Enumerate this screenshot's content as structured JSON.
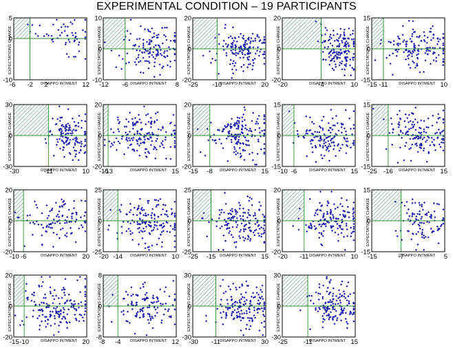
{
  "chart_data": {
    "type": "scatter",
    "title": "EXPERIMENTAL CONDITION – 19 PARTICIPANTS",
    "marker_color": "#1a1aa8",
    "reference_line_color": "#2e8b2e",
    "frame_color": "#000000",
    "hatch_color": "#2e7d5e",
    "panels": [
      {
        "xlabel": "DISAPPO INTMENT",
        "ylabel": "EXPECTATIONS CHANGE",
        "x_ticks": [
          "-6",
          "-2",
          "2",
          "12"
        ],
        "y_ticks": [
          "5",
          "0",
          "-10"
        ],
        "x_range": [
          -6,
          12
        ],
        "y_range": [
          -10,
          5
        ],
        "x_ref": -2,
        "y_ref": 0,
        "seed": 1,
        "n": 55
      },
      {
        "xlabel": "DISAPPO INTMENT",
        "ylabel": "EXPECTATIONS CHANGE",
        "x_ticks": [
          "-12",
          "-6",
          "8"
        ],
        "y_ticks": [
          "10",
          "0",
          "-10"
        ],
        "x_range": [
          -12,
          8
        ],
        "y_range": [
          -10,
          10
        ],
        "x_ref": -6,
        "y_ref": 0,
        "seed": 2,
        "n": 140
      },
      {
        "xlabel": "DISAPPO INTMENT",
        "ylabel": "EXPECTATIONS CHANGE",
        "x_ticks": [
          "-25",
          "-10",
          "20"
        ],
        "y_ticks": [
          "20",
          "0",
          "-20"
        ],
        "x_range": [
          -25,
          20
        ],
        "y_range": [
          -20,
          20
        ],
        "x_ref": -10,
        "y_ref": 0,
        "seed": 3,
        "n": 160
      },
      {
        "xlabel": "DISAPPO INTMENT",
        "ylabel": "EXPECTATIONS CHANGE",
        "x_ticks": [
          "-20",
          "-4",
          "10"
        ],
        "y_ticks": [
          "20",
          "0",
          "-20"
        ],
        "x_range": [
          -20,
          10
        ],
        "y_range": [
          -20,
          20
        ],
        "x_ref": -4,
        "y_ref": 0,
        "seed": 4,
        "n": 150
      },
      {
        "xlabel": "DISAPPO INTMENT",
        "ylabel": "EXPECTATIONS CHANGE",
        "x_ticks": [
          "-15",
          "-11",
          "10"
        ],
        "y_ticks": [
          "15",
          "0",
          "-15"
        ],
        "x_range": [
          -15,
          10
        ],
        "y_range": [
          -15,
          15
        ],
        "x_ref": -11,
        "y_ref": 0,
        "seed": 5,
        "n": 150
      },
      {
        "xlabel": "DISAPPO INTMENT",
        "ylabel": "EXPECTATIONS CHANGE",
        "x_ticks": [
          "-30",
          "-11",
          "10"
        ],
        "y_ticks": [
          "30",
          "0",
          "-30"
        ],
        "x_range": [
          -30,
          10
        ],
        "y_range": [
          -30,
          30
        ],
        "x_ref": -11,
        "y_ref": 0,
        "seed": 6,
        "n": 130
      },
      {
        "xlabel": "DISAPPO INTMENT",
        "ylabel": "EXPECTATIONS CHANGE",
        "x_ticks": [
          "-15",
          "-13",
          "15"
        ],
        "y_ticks": [
          "20",
          "0",
          "-20"
        ],
        "x_range": [
          -15,
          15
        ],
        "y_range": [
          -20,
          20
        ],
        "x_ref": -13,
        "y_ref": 0,
        "seed": 7,
        "n": 170
      },
      {
        "xlabel": "DISAPPO INTMENT",
        "ylabel": "EXPECTATIONS CHANGE",
        "x_ticks": [
          "-15",
          "-8",
          "15"
        ],
        "y_ticks": [
          "20",
          "0",
          "-20"
        ],
        "x_range": [
          -15,
          15
        ],
        "y_range": [
          -20,
          20
        ],
        "x_ref": -8,
        "y_ref": 0,
        "seed": 8,
        "n": 170
      },
      {
        "xlabel": "DISAPPO INTMENT",
        "ylabel": "EXPECTATIONS CHANGE",
        "x_ticks": [
          "-10",
          "-6",
          "15"
        ],
        "y_ticks": [
          "15",
          "0",
          "-15"
        ],
        "x_range": [
          -10,
          15
        ],
        "y_range": [
          -15,
          15
        ],
        "x_ref": -6,
        "y_ref": 0,
        "seed": 9,
        "n": 140
      },
      {
        "xlabel": "DISAPPO INTMENT",
        "ylabel": "EXPECTATIONS CHANGE",
        "x_ticks": [
          "-25",
          "-16",
          "15"
        ],
        "y_ticks": [
          "15",
          "0",
          "-15"
        ],
        "x_range": [
          -25,
          15
        ],
        "y_range": [
          -15,
          15
        ],
        "x_ref": -16,
        "y_ref": 0,
        "seed": 10,
        "n": 150
      },
      {
        "xlabel": "DISAPPO INTMENT",
        "ylabel": "EXPECTATIONS CHANGE",
        "x_ticks": [
          "-10",
          "-6",
          "20"
        ],
        "y_ticks": [
          "20",
          "0",
          "-20"
        ],
        "x_range": [
          -10,
          20
        ],
        "y_range": [
          -20,
          20
        ],
        "x_ref": -6,
        "y_ref": 0,
        "seed": 11,
        "n": 110
      },
      {
        "xlabel": "DISAPPO INTMENT",
        "ylabel": "EXPECTATIONS CHANGE",
        "x_ticks": [
          "-20",
          "-14",
          "10"
        ],
        "y_ticks": [
          "25",
          "0",
          "-25"
        ],
        "x_range": [
          -20,
          10
        ],
        "y_range": [
          -25,
          25
        ],
        "x_ref": -14,
        "y_ref": 0,
        "seed": 12,
        "n": 160
      },
      {
        "xlabel": "DISAPPO INTMENT",
        "ylabel": "EXPECTATIONS CHANGE",
        "x_ticks": [
          "-25",
          "-15",
          "15"
        ],
        "y_ticks": [
          "25",
          "0",
          "-25"
        ],
        "x_range": [
          -25,
          15
        ],
        "y_range": [
          -25,
          25
        ],
        "x_ref": -15,
        "y_ref": 0,
        "seed": 13,
        "n": 160
      },
      {
        "xlabel": "DISAPPO INTMENT",
        "ylabel": "EXPECTATIONS CHANGE",
        "x_ticks": [
          "-20",
          "-11",
          "10"
        ],
        "y_ticks": [
          "20",
          "0",
          "-20"
        ],
        "x_range": [
          -20,
          10
        ],
        "y_range": [
          -20,
          20
        ],
        "x_ref": -11,
        "y_ref": 0,
        "seed": 14,
        "n": 150
      },
      {
        "xlabel": "DISAPPO INTMENT",
        "ylabel": "EXPECTATIONS CHANGE",
        "x_ticks": [
          "-15",
          "-7",
          "5"
        ],
        "y_ticks": [
          "15",
          "0",
          "-15"
        ],
        "x_range": [
          -15,
          5
        ],
        "y_range": [
          -15,
          15
        ],
        "x_ref": -7,
        "y_ref": 0,
        "seed": 15,
        "n": 100
      },
      {
        "xlabel": "DISAPPO INTMENT",
        "ylabel": "EXPECTATIONS CHANGE",
        "x_ticks": [
          "-15",
          "-10",
          "20"
        ],
        "y_ticks": [
          "20",
          "0",
          "-20"
        ],
        "x_range": [
          -15,
          20
        ],
        "y_range": [
          -20,
          20
        ],
        "x_ref": -10,
        "y_ref": 0,
        "seed": 16,
        "n": 170
      },
      {
        "xlabel": "DISAPPO INTMENT",
        "ylabel": "EXPECTATIONS CHANGE",
        "x_ticks": [
          "-8",
          "-4",
          "12"
        ],
        "y_ticks": [
          "8",
          "0",
          "-8"
        ],
        "x_range": [
          -8,
          12
        ],
        "y_range": [
          -8,
          8
        ],
        "x_ref": -4,
        "y_ref": 0,
        "seed": 17,
        "n": 120
      },
      {
        "xlabel": "DISAPPO INTMENT",
        "ylabel": "EXPECTATIONS CHANGE",
        "x_ticks": [
          "-30",
          "-11",
          "30"
        ],
        "y_ticks": [
          "30",
          "0",
          "-30"
        ],
        "x_range": [
          -30,
          30
        ],
        "y_range": [
          -30,
          30
        ],
        "x_ref": -11,
        "y_ref": 0,
        "seed": 18,
        "n": 160
      },
      {
        "xlabel": "DISAPPO INTMENT",
        "ylabel": "EXPECTATIONS CHANGE",
        "x_ticks": [
          "-25",
          "-11",
          "15"
        ],
        "y_ticks": [
          "30",
          "0",
          "-30"
        ],
        "x_range": [
          -25,
          15
        ],
        "y_range": [
          -30,
          30
        ],
        "x_ref": -11,
        "y_ref": 0,
        "seed": 19,
        "n": 150
      }
    ]
  }
}
